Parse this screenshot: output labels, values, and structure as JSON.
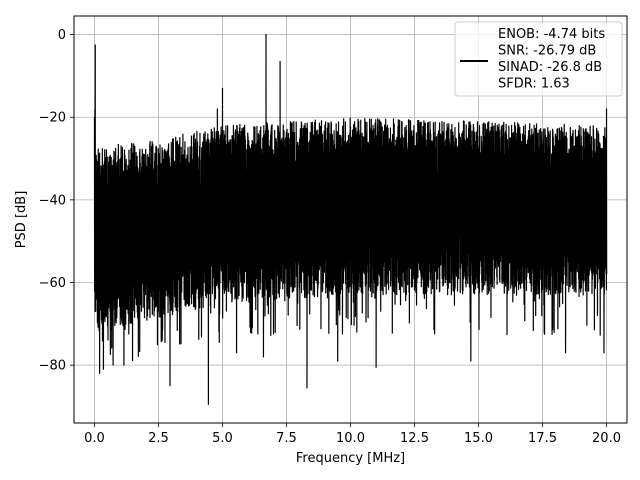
{
  "chart_data": {
    "type": "line",
    "title": "",
    "xlabel": "Frequency [MHz]",
    "ylabel": "PSD [dB]",
    "xlim": [
      -0.8,
      20.8
    ],
    "ylim": [
      -94,
      4.5
    ],
    "xticks": [
      0.0,
      2.5,
      5.0,
      7.5,
      10.0,
      12.5,
      15.0,
      17.5,
      20.0
    ],
    "xtick_labels": [
      "0.0",
      "2.5",
      "5.0",
      "7.5",
      "10.0",
      "12.5",
      "15.0",
      "17.5",
      "20.0"
    ],
    "yticks": [
      0,
      -20,
      -40,
      -60,
      -80
    ],
    "ytick_labels": [
      "0",
      "−20",
      "−40",
      "−60",
      "−80"
    ],
    "grid": true,
    "legend_position": "top-right",
    "series": [
      {
        "name": "ENOB: -4.74 bits\nSNR: -26.79 dB\nSINAD: -26.8 dB\nSFDR: 1.63",
        "color": "#000000",
        "x_range": [
          0,
          20
        ],
        "peaks": [
          {
            "x": 0.03,
            "y": -2.5
          },
          {
            "x": 4.8,
            "y": -18
          },
          {
            "x": 5.0,
            "y": -13
          },
          {
            "x": 6.7,
            "y": 0
          },
          {
            "x": 7.25,
            "y": -6.5
          },
          {
            "x": 20.0,
            "y": -18
          }
        ],
        "dips": [
          {
            "x": 0.2,
            "y": -82
          },
          {
            "x": 0.35,
            "y": -81
          },
          {
            "x": 1.15,
            "y": -80
          },
          {
            "x": 2.95,
            "y": -85
          },
          {
            "x": 4.45,
            "y": -89.5
          },
          {
            "x": 5.55,
            "y": -77
          },
          {
            "x": 6.6,
            "y": -78
          },
          {
            "x": 8.3,
            "y": -85.5
          },
          {
            "x": 9.5,
            "y": -79
          },
          {
            "x": 11.0,
            "y": -80.5
          },
          {
            "x": 14.7,
            "y": -79
          },
          {
            "x": 18.4,
            "y": -77
          },
          {
            "x": 19.9,
            "y": -77
          }
        ],
        "envelope_top": [
          [
            0.1,
            -27
          ],
          [
            2,
            -26
          ],
          [
            5,
            -22
          ],
          [
            10,
            -20
          ],
          [
            15,
            -21
          ],
          [
            20,
            -22
          ]
        ],
        "envelope_bottom": [
          [
            0.1,
            -72
          ],
          [
            5,
            -65
          ],
          [
            10,
            -63
          ],
          [
            15,
            -63
          ],
          [
            20,
            -63
          ]
        ]
      }
    ]
  }
}
